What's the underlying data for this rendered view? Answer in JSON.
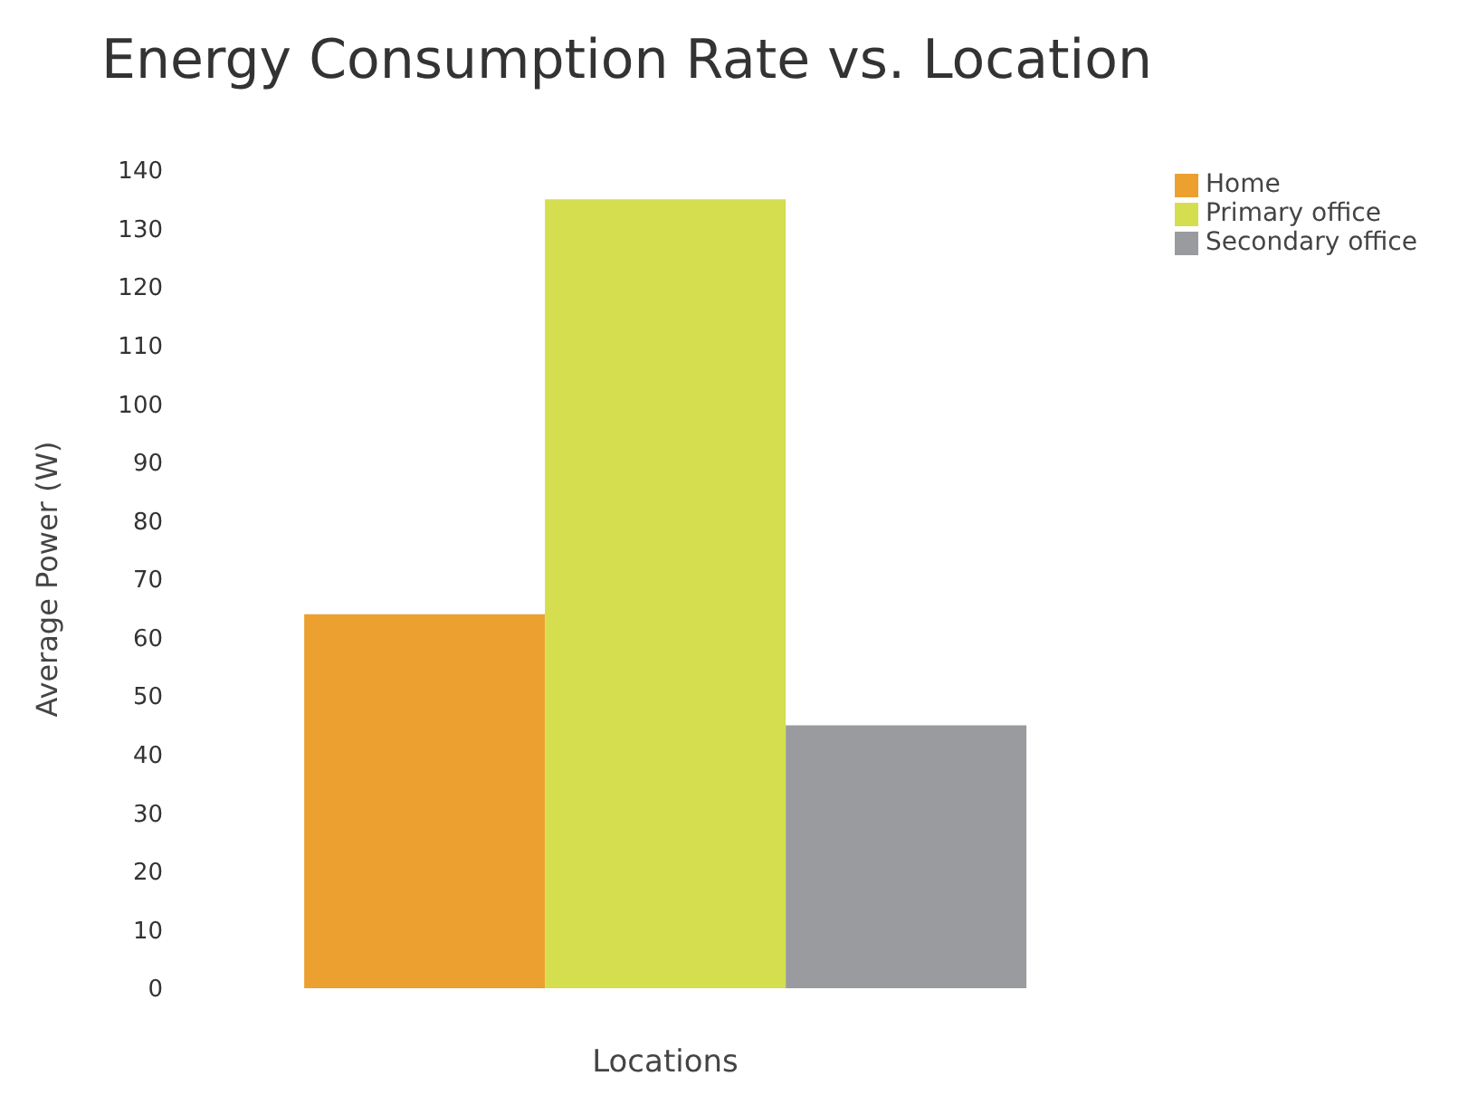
{
  "chart_data": {
    "type": "bar",
    "title": "Energy Consumption Rate vs. Location",
    "xlabel": "Locations",
    "ylabel": "Average Power (W)",
    "categories": [
      null
    ],
    "series": [
      {
        "name": "Home",
        "color": "#eba030",
        "values": [
          64
        ]
      },
      {
        "name": "Primary office",
        "color": "#d5de4f",
        "values": [
          135
        ]
      },
      {
        "name": "Secondary office",
        "color": "#9a9b9f",
        "values": [
          45
        ]
      }
    ],
    "ylim": [
      0,
      140
    ],
    "yticks": [
      0,
      10,
      20,
      30,
      40,
      50,
      60,
      70,
      80,
      90,
      100,
      110,
      120,
      130,
      140
    ],
    "grid": false,
    "legend": "top right"
  }
}
